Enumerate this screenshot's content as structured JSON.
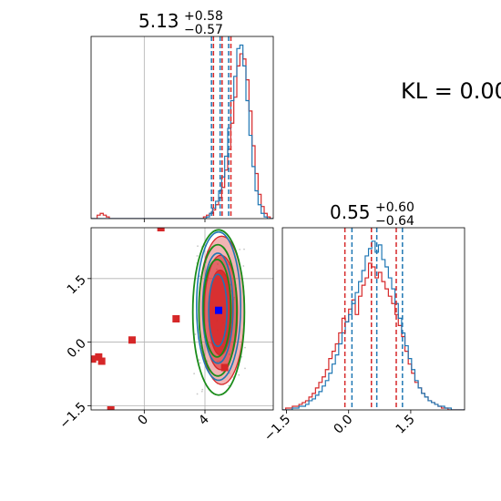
{
  "annotation": {
    "kl_text": "KL = 0.00"
  },
  "colors": {
    "red": "#d62728",
    "blue": "#1f77b4",
    "green": "#1a8c1a",
    "grid": "#b0b0b0",
    "axis": "#000000"
  },
  "chart_data": [
    {
      "type": "histogram",
      "panel": "top-left",
      "title": {
        "value": "5.13",
        "plus": "+0.58",
        "minus": "−0.57"
      },
      "xlim": [
        -3.5,
        8.5
      ],
      "grid_x": [
        0
      ],
      "bins": {
        "start": -3.5,
        "width": 0.2,
        "count": 60
      },
      "series": [
        {
          "color": "red",
          "style": "step",
          "counts": [
            0,
            0,
            2,
            3,
            2,
            1,
            0,
            0,
            0,
            0,
            0,
            0,
            0,
            0,
            0,
            0,
            0,
            0,
            0,
            0,
            0,
            0,
            0,
            0,
            0,
            0,
            0,
            0,
            0,
            0,
            0,
            0,
            0,
            0,
            0,
            0,
            0,
            1,
            2,
            3,
            5,
            8,
            12,
            18,
            28,
            40,
            55,
            70,
            88,
            95,
            92,
            80,
            62,
            42,
            26,
            14,
            7,
            3,
            1,
            0
          ]
        },
        {
          "color": "blue",
          "style": "step",
          "counts": [
            0,
            0,
            0,
            0,
            0,
            0,
            0,
            0,
            0,
            0,
            0,
            0,
            0,
            0,
            0,
            0,
            0,
            0,
            0,
            0,
            0,
            0,
            0,
            0,
            0,
            0,
            0,
            0,
            0,
            0,
            0,
            0,
            0,
            0,
            0,
            0,
            0,
            0,
            1,
            3,
            6,
            10,
            16,
            24,
            36,
            52,
            68,
            82,
            98,
            100,
            88,
            68,
            48,
            30,
            16,
            8,
            3,
            1,
            0,
            0
          ]
        }
      ],
      "quantile_lines": [
        {
          "color": "red",
          "values": [
            4.56,
            5.13,
            5.71
          ]
        },
        {
          "color": "blue",
          "values": [
            4.43,
            5.0,
            5.56
          ]
        }
      ]
    },
    {
      "type": "contour",
      "panel": "bottom-left",
      "xlim": [
        -3.5,
        8.5
      ],
      "ylim": [
        -1.6,
        2.7
      ],
      "x_ticks": [
        0,
        4
      ],
      "y_ticks": [
        -1.5,
        0.0,
        1.5
      ],
      "grid": true,
      "filled_red_levels": [
        {
          "cx": 5.1,
          "cy": 0.75,
          "rx": 1.5,
          "ry": 1.75,
          "opacity": 0.35
        },
        {
          "cx": 5.05,
          "cy": 0.7,
          "rx": 1.1,
          "ry": 1.35,
          "opacity": 0.55
        },
        {
          "cx": 5.0,
          "cy": 0.7,
          "rx": 0.75,
          "ry": 1.0,
          "opacity": 0.85
        }
      ],
      "blue_contours": [
        {
          "cx": 4.9,
          "cy": 0.85,
          "rx": 1.45,
          "ry": 1.75
        },
        {
          "cx": 4.85,
          "cy": 0.8,
          "rx": 1.0,
          "ry": 1.3
        },
        {
          "cx": 4.85,
          "cy": 0.75,
          "rx": 0.6,
          "ry": 0.85
        }
      ],
      "green_contours": [
        {
          "cx": 4.9,
          "cy": 0.7,
          "rx": 1.7,
          "ry": 1.95
        },
        {
          "cx": 4.85,
          "cy": 0.75,
          "rx": 1.25,
          "ry": 1.55
        },
        {
          "cx": 4.8,
          "cy": 0.8,
          "rx": 0.9,
          "ry": 1.15
        }
      ],
      "red_points": [
        [
          1.1,
          2.7
        ],
        [
          2.1,
          0.55
        ],
        [
          -0.8,
          0.05
        ],
        [
          -3.0,
          -0.35
        ],
        [
          -2.8,
          -0.45
        ],
        [
          -3.4,
          -0.4
        ],
        [
          -2.2,
          -1.6
        ],
        [
          5.3,
          -0.6
        ]
      ],
      "blue_point": [
        4.9,
        0.75
      ]
    },
    {
      "type": "histogram",
      "panel": "bottom-right",
      "title": {
        "value": "0.55",
        "plus": "+0.60",
        "minus": "−0.64"
      },
      "xlim": [
        -1.6,
        2.8
      ],
      "x_ticks": [
        -1.5,
        0.0,
        1.5
      ],
      "bins": {
        "start": -1.6,
        "width": 0.08,
        "count": 55
      },
      "series": [
        {
          "color": "red",
          "style": "step",
          "counts": [
            0,
            1,
            1,
            2,
            2,
            3,
            4,
            5,
            7,
            9,
            12,
            15,
            18,
            22,
            28,
            32,
            36,
            42,
            50,
            48,
            55,
            60,
            52,
            62,
            68,
            72,
            80,
            78,
            72,
            75,
            70,
            66,
            62,
            58,
            52,
            46,
            40,
            32,
            25,
            20,
            15,
            12,
            9,
            7,
            5,
            4,
            3,
            2,
            1,
            1,
            0,
            0,
            0,
            0,
            0
          ]
        },
        {
          "color": "blue",
          "style": "step",
          "counts": [
            0,
            0,
            0,
            1,
            1,
            2,
            2,
            3,
            5,
            6,
            8,
            10,
            13,
            16,
            20,
            25,
            30,
            36,
            42,
            48,
            52,
            58,
            64,
            70,
            76,
            84,
            88,
            92,
            86,
            90,
            82,
            78,
            72,
            66,
            58,
            50,
            42,
            35,
            28,
            22,
            16,
            12,
            9,
            7,
            5,
            4,
            3,
            2,
            2,
            1,
            1,
            0,
            0,
            0,
            0
          ]
        }
      ],
      "quantile_lines": [
        {
          "color": "red",
          "values": [
            -0.09,
            0.55,
            1.15
          ]
        },
        {
          "color": "blue",
          "values": [
            0.08,
            0.68,
            1.3
          ]
        }
      ]
    }
  ]
}
